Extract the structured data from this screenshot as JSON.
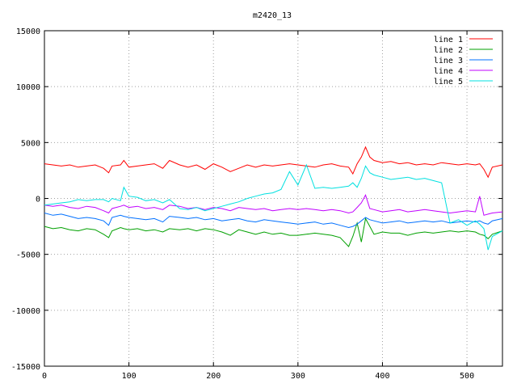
{
  "chart_data": {
    "type": "line",
    "title": "m2420_13",
    "xlabel": "",
    "ylabel": "",
    "xlim": [
      0,
      542
    ],
    "ylim": [
      -15000,
      15000
    ],
    "grid": true,
    "legend_position": "top-right",
    "x_ticks": [
      0,
      100,
      200,
      300,
      400,
      500
    ],
    "y_ticks": [
      -15000,
      -10000,
      -5000,
      0,
      5000,
      10000,
      15000
    ],
    "x": [
      0,
      10,
      20,
      30,
      40,
      50,
      60,
      70,
      76,
      80,
      90,
      94,
      100,
      110,
      120,
      130,
      140,
      148,
      160,
      170,
      180,
      190,
      200,
      210,
      220,
      230,
      240,
      250,
      260,
      270,
      280,
      290,
      300,
      310,
      320,
      330,
      340,
      350,
      360,
      365,
      370,
      375,
      380,
      385,
      390,
      400,
      410,
      420,
      430,
      440,
      450,
      460,
      470,
      480,
      490,
      500,
      510,
      515,
      520,
      525,
      530,
      542
    ],
    "series": [
      {
        "name": "line 1",
        "color": "#ff0000",
        "values": [
          3100,
          3000,
          2900,
          3000,
          2800,
          2900,
          3000,
          2700,
          2300,
          2900,
          3000,
          3400,
          2800,
          2900,
          3000,
          3100,
          2700,
          3400,
          3000,
          2800,
          3000,
          2600,
          3100,
          2800,
          2400,
          2700,
          3000,
          2800,
          3000,
          2900,
          3000,
          3100,
          3000,
          2900,
          2800,
          3000,
          3100,
          2900,
          2800,
          2200,
          3100,
          3700,
          4600,
          3700,
          3400,
          3200,
          3300,
          3100,
          3200,
          3000,
          3100,
          3000,
          3200,
          3100,
          3000,
          3100,
          3000,
          3100,
          2600,
          1900,
          2800,
          3000
        ]
      },
      {
        "name": "line 2",
        "color": "#00a000",
        "values": [
          -2500,
          -2700,
          -2600,
          -2800,
          -2900,
          -2700,
          -2800,
          -3200,
          -3500,
          -2900,
          -2600,
          -2700,
          -2800,
          -2700,
          -2900,
          -2800,
          -3000,
          -2700,
          -2800,
          -2700,
          -2900,
          -2700,
          -2800,
          -3000,
          -3300,
          -2800,
          -3000,
          -3200,
          -3000,
          -3200,
          -3100,
          -3300,
          -3300,
          -3200,
          -3100,
          -3200,
          -3300,
          -3500,
          -4300,
          -3400,
          -2200,
          -3900,
          -1800,
          -2500,
          -3200,
          -3000,
          -3100,
          -3100,
          -3300,
          -3100,
          -3000,
          -3100,
          -3000,
          -2900,
          -3000,
          -2900,
          -3000,
          -3200,
          -3300,
          -3600,
          -3200,
          -2900
        ]
      },
      {
        "name": "line 3",
        "color": "#0070ff",
        "values": [
          -1300,
          -1500,
          -1400,
          -1600,
          -1800,
          -1700,
          -1800,
          -2000,
          -2400,
          -1700,
          -1500,
          -1600,
          -1700,
          -1800,
          -1900,
          -1800,
          -2100,
          -1600,
          -1700,
          -1800,
          -1700,
          -1900,
          -1800,
          -2000,
          -1900,
          -1800,
          -2000,
          -2100,
          -1900,
          -2000,
          -2100,
          -2200,
          -2300,
          -2200,
          -2100,
          -2300,
          -2200,
          -2400,
          -2600,
          -2500,
          -2300,
          -2000,
          -1700,
          -1900,
          -2000,
          -2200,
          -2100,
          -2000,
          -2200,
          -2100,
          -2000,
          -2100,
          -2000,
          -2200,
          -2100,
          -2000,
          -2100,
          -2000,
          -2200,
          -2300,
          -2000,
          -1800
        ]
      },
      {
        "name": "line 4",
        "color": "#c000ff",
        "values": [
          -600,
          -700,
          -600,
          -800,
          -900,
          -700,
          -800,
          -1100,
          -1300,
          -900,
          -700,
          -600,
          -800,
          -700,
          -900,
          -800,
          -1000,
          -600,
          -700,
          -900,
          -800,
          -1000,
          -800,
          -900,
          -1100,
          -800,
          -900,
          -1000,
          -900,
          -1100,
          -1000,
          -900,
          -1000,
          -900,
          -1000,
          -1100,
          -1000,
          -1100,
          -1300,
          -1200,
          -800,
          -400,
          300,
          -900,
          -1000,
          -1200,
          -1100,
          -1000,
          -1200,
          -1100,
          -1000,
          -1100,
          -1200,
          -1300,
          -1200,
          -1100,
          -1200,
          200,
          -1500,
          -1400,
          -1300,
          -1200
        ]
      },
      {
        "name": "line 5",
        "color": "#00e0e0",
        "values": [
          -600,
          -500,
          -400,
          -300,
          -100,
          -200,
          -100,
          -100,
          -300,
          0,
          -200,
          1000,
          200,
          100,
          -200,
          -100,
          -400,
          -100,
          -900,
          -1000,
          -800,
          -1100,
          -900,
          -700,
          -500,
          -300,
          0,
          200,
          400,
          500,
          800,
          2400,
          1200,
          3000,
          900,
          1000,
          900,
          1000,
          1100,
          1400,
          1000,
          1800,
          2900,
          2300,
          2100,
          1900,
          1700,
          1800,
          1900,
          1700,
          1800,
          1600,
          1400,
          -2200,
          -1900,
          -2400,
          -2000,
          -2300,
          -2700,
          -4600,
          -3400,
          -2900
        ]
      }
    ]
  }
}
